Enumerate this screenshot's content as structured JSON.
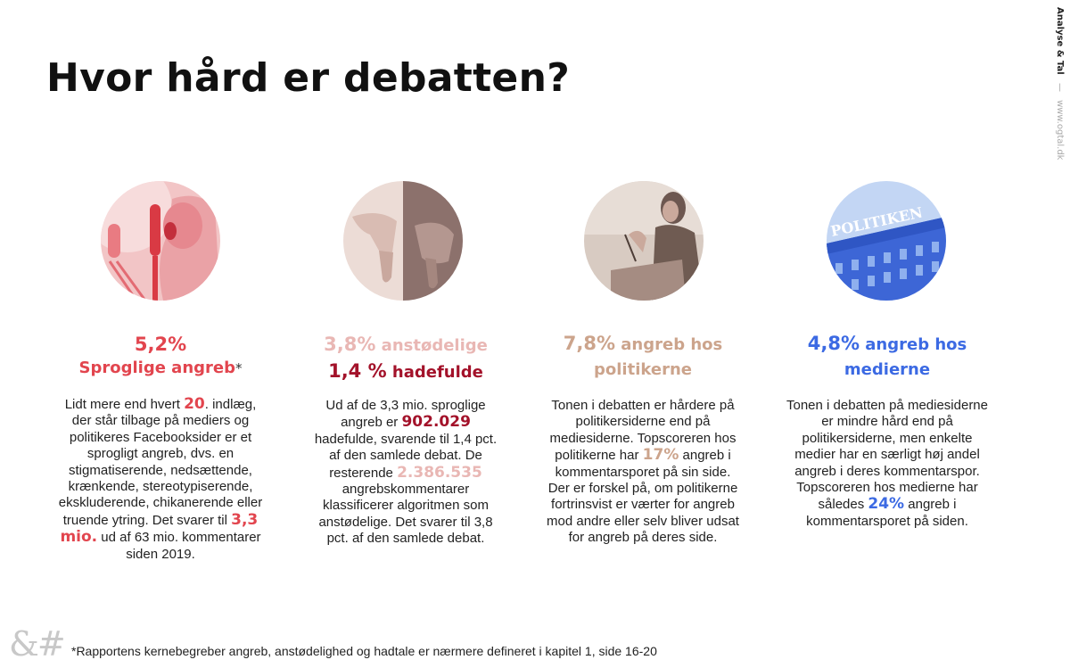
{
  "title": "Hvor hård er debatten?",
  "side_brand": {
    "name": "Analyse & Tal",
    "separator": "—",
    "url": "www.ogtal.dk"
  },
  "colors": {
    "red": "#e2454e",
    "pink": "#e9b7b4",
    "dark_red": "#a3122a",
    "tan": "#cca48c",
    "blue": "#3c6ae3"
  },
  "columns": [
    {
      "image": "person-shouting-into-microphone",
      "head_value": "5,2%",
      "head_label": "Sproglige angreb",
      "head_star": "*",
      "body": {
        "t1": "Lidt mere end hvert ",
        "n1": "20",
        "t2": ". indlæg, der står tilbage på mediers og politikeres Facebooksider er et sprogligt angreb, dvs. en stigmatiserende, nedsættende, krænkende, stereotypiserende, ekskluderende, chikanerende eller truende ytring. Det svarer til ",
        "n2": "3,3 mio.",
        "t3": " ud af 63 mio. kommentarer siden 2019."
      }
    },
    {
      "image": "thumbs-down-hands",
      "head_value": "3,8%",
      "head_label": " anstødelige",
      "head2_value": "1,4 %",
      "head2_label": " hadefulde",
      "body": {
        "t1": "Ud af de 3,3 mio. sproglige angreb er ",
        "n1": "902.029",
        "t2": " hadefulde, svarende til 1,4 pct. af den samlede debat. De resterende ",
        "n2": "2.386.535",
        "t3": " angrebskommentarer klassificerer algoritmen som anstødelige. Det svarer til 3,8 pct. af den samlede debat."
      }
    },
    {
      "image": "politician-at-podium",
      "head_value": "7,8%",
      "head_label": " angreb hos politikerne",
      "body": {
        "t1": "Tonen i debatten er hårdere på politikersiderne end på mediesiderne. Topscoreren hos politikerne har ",
        "n1": "17%",
        "t2": " angreb i kommentarsporet på sin side. Der er forskel på, om politikerne fortrinsvist er værter for angreb mod andre eller selv bliver udsat for angreb på deres side."
      }
    },
    {
      "image": "politiken-building",
      "image_sign_text": "POLITIKEN",
      "head_value": "4,8%",
      "head_label": " angreb hos medierne",
      "body": {
        "t1": "Tonen i debatten på mediesiderne er mindre hård end på politikersiderne, men enkelte medier har en særligt høj andel angreb i deres kommentarspor. Topscoreren hos medierne har således ",
        "n1": "24%",
        "t2": " angreb i kommentarsporet på siden."
      }
    }
  ],
  "footer": {
    "logo": "&#",
    "footnote": "*Rapportens kernebegreber angreb, anstødelighed og hadtale er nærmere defineret i kapitel 1, side 16-20"
  }
}
